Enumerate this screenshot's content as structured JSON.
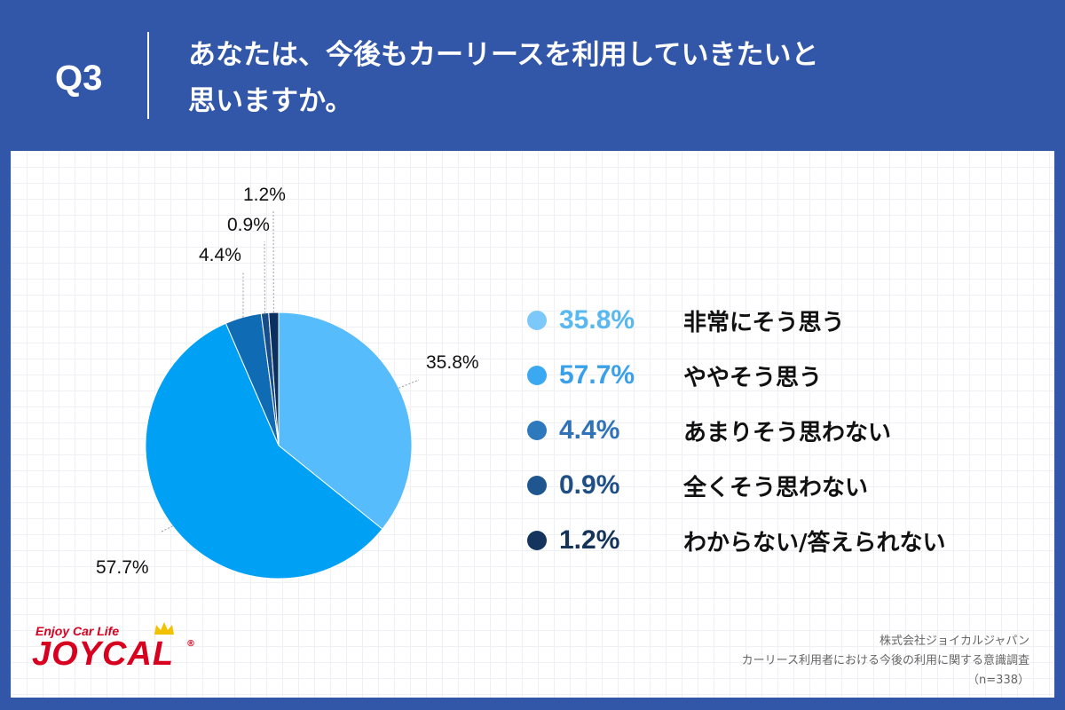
{
  "header": {
    "question_label": "Q3",
    "question_text_line1": "あなたは、今後もカーリースを利用していきたいと",
    "question_text_line2": "思いますか。"
  },
  "chart_data": {
    "type": "pie",
    "start_angle_deg": 0,
    "direction": "clockwise",
    "slices": [
      {
        "label": "非常にそう思う",
        "value": 35.8,
        "display": "35.8%",
        "color": "#57bcfb"
      },
      {
        "label": "ややそう思う",
        "value": 57.7,
        "display": "57.7%",
        "color": "#00a0f5"
      },
      {
        "label": "あまりそう思わない",
        "value": 4.4,
        "display": "4.4%",
        "color": "#0f6bb4"
      },
      {
        "label": "全くそう思わない",
        "value": 0.9,
        "display": "0.9%",
        "color": "#174d8a"
      },
      {
        "label": "わからない/答えられない",
        "value": 1.2,
        "display": "1.2%",
        "color": "#0b2f5e"
      }
    ],
    "legend_placement": "right"
  },
  "legend_colors": [
    "#7cc8fa",
    "#3ba8f2",
    "#2e78bd",
    "#1f568f",
    "#14345e"
  ],
  "legend_text_colors": [
    "#5ab8f0",
    "#3aa0ea",
    "#2e72b8",
    "#1f4f86",
    "#16335a"
  ],
  "logo": {
    "tagline": "Enjoy Car Life",
    "brand": "JOYCAL",
    "mark": "®"
  },
  "source": {
    "company": "株式会社ジョイカルジャパン",
    "survey": "カーリース利用者における今後の利用に関する意識調査",
    "sample": "（n=338）"
  }
}
